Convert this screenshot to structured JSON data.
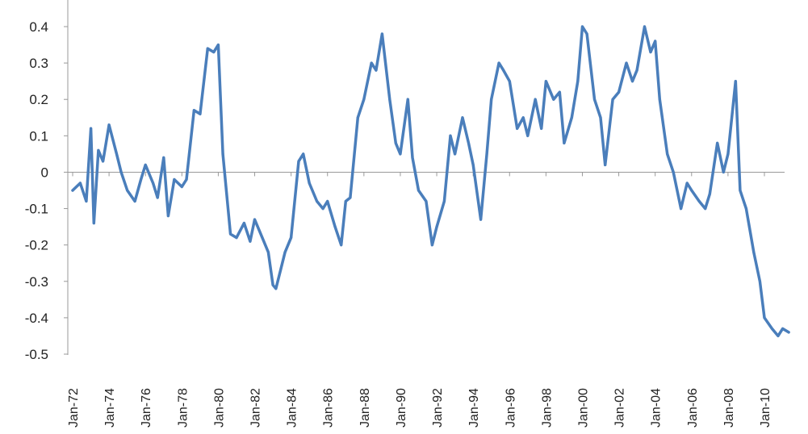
{
  "chart_data": {
    "type": "line",
    "title": "",
    "xlabel": "",
    "ylabel": "",
    "ylim": [
      -0.5,
      0.4
    ],
    "xlim": [
      "1972-01",
      "2011-06"
    ],
    "y_ticks": [
      "0.4",
      "0.3",
      "0.2",
      "0.1",
      "0",
      "-0.1",
      "-0.2",
      "-0.3",
      "-0.4",
      "-0.5"
    ],
    "x_ticks": [
      "Jan-72",
      "Jan-74",
      "Jan-76",
      "Jan-78",
      "Jan-80",
      "Jan-82",
      "Jan-84",
      "Jan-86",
      "Jan-88",
      "Jan-90",
      "Jan-92",
      "Jan-94",
      "Jan-96",
      "Jan-98",
      "Jan-00",
      "Jan-02",
      "Jan-04",
      "Jan-06",
      "Jan-08",
      "Jan-10"
    ],
    "grid": false,
    "legend": "none",
    "line_color": "#4a7ebb",
    "axis_color": "#999999",
    "series": [
      {
        "x": [
          "1972-01",
          "1972-06",
          "1972-10",
          "1973-01",
          "1973-03",
          "1973-06",
          "1973-09",
          "1974-01",
          "1974-06",
          "1974-09",
          "1975-01",
          "1975-06",
          "1975-10",
          "1976-01",
          "1976-06",
          "1976-09",
          "1977-01",
          "1977-04",
          "1977-08",
          "1978-01",
          "1978-04",
          "1978-09",
          "1979-01",
          "1979-06",
          "1979-10",
          "1980-01",
          "1980-04",
          "1980-09",
          "1981-01",
          "1981-06",
          "1981-10",
          "1982-01",
          "1982-06",
          "1982-10",
          "1983-01",
          "1983-03",
          "1983-06",
          "1983-09",
          "1984-01",
          "1984-06",
          "1984-09",
          "1985-01",
          "1985-06",
          "1985-10",
          "1986-01",
          "1986-06",
          "1986-10",
          "1987-01",
          "1987-04",
          "1987-09",
          "1988-01",
          "1988-06",
          "1988-09",
          "1989-01",
          "1989-06",
          "1989-10",
          "1990-01",
          "1990-06",
          "1990-09",
          "1991-01",
          "1991-06",
          "1991-10",
          "1992-01",
          "1992-06",
          "1992-10",
          "1993-01",
          "1993-06",
          "1993-10",
          "1994-01",
          "1994-06",
          "1994-10",
          "1995-01",
          "1995-06",
          "1995-09",
          "1996-01",
          "1996-06",
          "1996-10",
          "1997-01",
          "1997-06",
          "1997-10",
          "1998-01",
          "1998-06",
          "1998-10",
          "1999-01",
          "1999-06",
          "1999-10",
          "2000-01",
          "2000-04",
          "2000-09",
          "2001-01",
          "2001-04",
          "2001-09",
          "2002-01",
          "2002-06",
          "2002-10",
          "2003-01",
          "2003-06",
          "2003-10",
          "2004-01",
          "2004-04",
          "2004-09",
          "2005-01",
          "2005-06",
          "2005-10",
          "2006-01",
          "2006-06",
          "2006-10",
          "2007-01",
          "2007-06",
          "2007-10",
          "2008-01",
          "2008-06",
          "2008-09",
          "2009-01",
          "2009-06",
          "2009-10",
          "2010-01",
          "2010-06",
          "2010-10",
          "2011-01",
          "2011-05"
        ],
        "values": [
          -0.05,
          -0.03,
          -0.08,
          0.12,
          -0.14,
          0.06,
          0.03,
          0.13,
          0.05,
          0.0,
          -0.05,
          -0.08,
          -0.02,
          0.02,
          -0.03,
          -0.07,
          0.04,
          -0.12,
          -0.02,
          -0.04,
          -0.02,
          0.17,
          0.16,
          0.34,
          0.33,
          0.35,
          0.05,
          -0.17,
          -0.18,
          -0.14,
          -0.19,
          -0.13,
          -0.18,
          -0.22,
          -0.31,
          -0.32,
          -0.27,
          -0.22,
          -0.18,
          0.03,
          0.05,
          -0.03,
          -0.08,
          -0.1,
          -0.08,
          -0.15,
          -0.2,
          -0.08,
          -0.07,
          0.15,
          0.2,
          0.3,
          0.28,
          0.38,
          0.2,
          0.08,
          0.05,
          0.2,
          0.04,
          -0.05,
          -0.08,
          -0.2,
          -0.15,
          -0.08,
          0.1,
          0.05,
          0.15,
          0.08,
          0.02,
          -0.13,
          0.05,
          0.2,
          0.3,
          0.28,
          0.25,
          0.12,
          0.15,
          0.1,
          0.2,
          0.12,
          0.25,
          0.2,
          0.22,
          0.08,
          0.15,
          0.25,
          0.4,
          0.38,
          0.2,
          0.15,
          0.02,
          0.2,
          0.22,
          0.3,
          0.25,
          0.28,
          0.4,
          0.33,
          0.36,
          0.2,
          0.05,
          0.0,
          -0.1,
          -0.03,
          -0.05,
          -0.08,
          -0.1,
          -0.06,
          0.08,
          0.0,
          0.05,
          0.25,
          -0.05,
          -0.1,
          -0.22,
          -0.3,
          -0.4,
          -0.43,
          -0.45,
          -0.43,
          -0.44
        ]
      }
    ]
  }
}
